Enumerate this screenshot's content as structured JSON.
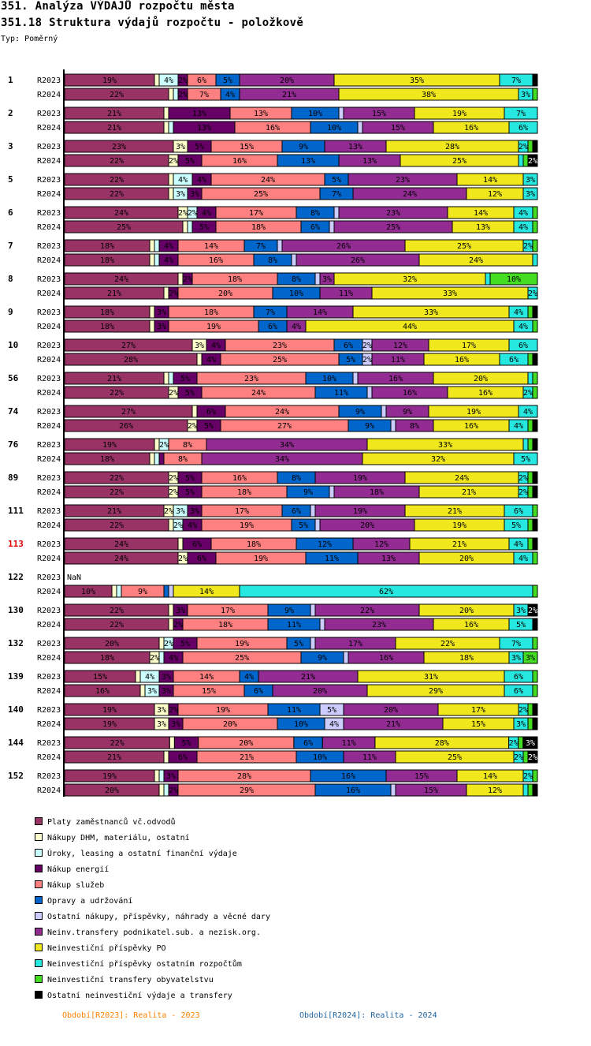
{
  "header": {
    "title": "351. Analýza VÝDAJŮ rozpočtu města",
    "subtitle": "351.18 Struktura výdajů rozpočtu - položkově",
    "type_label": "Typ: Poměrný"
  },
  "chart_data": {
    "type": "bar",
    "stacked": true,
    "orientation": "horizontal",
    "normalized_to": 100,
    "categories": [
      "Platy zaměstnanců vč.odvodů",
      "Nákupy DHM, materiálu, ostatní",
      "Úroky, leasing a ostatní finanční výdaje",
      "Nákup energií",
      "Nákup služeb",
      "Opravy a udržování",
      "Ostatní nákupy, příspěvky, náhrady a věcné dary",
      "Neinv.transfery podnikatel.sub. a nezisk.org.",
      "Neinvestiční příspěvky PO",
      "Neinvestiční příspěvky ostatním rozpočtům",
      "Neinvestiční transfery obyvatelstvu",
      "Ostatní neinvestiční výdaje a transfery"
    ],
    "colors": [
      "#993366",
      "#ffffcc",
      "#ccffff",
      "#660066",
      "#ff8080",
      "#0066cc",
      "#ccccff",
      "#922b92",
      "#f0e81c",
      "#26e8e0",
      "#44dd22",
      "#000000"
    ],
    "groups": [
      {
        "id": "1",
        "highlight": false,
        "rows": [
          {
            "period": "R2023",
            "values": [
              19,
              1,
              4,
              2,
              6,
              5,
              0,
              20,
              35,
              7,
              0,
              1
            ]
          },
          {
            "period": "R2024",
            "values": [
              22,
              1,
              1,
              2,
              7,
              4,
              0,
              21,
              38,
              3,
              1,
              0
            ]
          }
        ]
      },
      {
        "id": "2",
        "highlight": false,
        "rows": [
          {
            "period": "R2023",
            "values": [
              21,
              1,
              0,
              13,
              13,
              10,
              1,
              15,
              19,
              7,
              0,
              0
            ]
          },
          {
            "period": "R2024",
            "values": [
              21,
              1,
              1,
              13,
              16,
              10,
              1,
              15,
              16,
              6,
              0,
              0
            ]
          }
        ]
      },
      {
        "id": "3",
        "highlight": false,
        "rows": [
          {
            "period": "R2023",
            "values": [
              23,
              3,
              0,
              5,
              15,
              9,
              0,
              13,
              28,
              2,
              1,
              1
            ]
          },
          {
            "period": "R2024",
            "values": [
              22,
              2,
              0,
              5,
              16,
              13,
              0,
              13,
              25,
              1,
              1,
              2
            ]
          }
        ]
      },
      {
        "id": "5",
        "highlight": false,
        "rows": [
          {
            "period": "R2023",
            "values": [
              22,
              1,
              4,
              4,
              24,
              5,
              0,
              23,
              14,
              3,
              0,
              0
            ]
          },
          {
            "period": "R2024",
            "values": [
              22,
              1,
              3,
              3,
              25,
              7,
              0,
              24,
              12,
              3,
              0,
              0
            ]
          }
        ]
      },
      {
        "id": "6",
        "highlight": false,
        "rows": [
          {
            "period": "R2023",
            "values": [
              24,
              2,
              2,
              4,
              17,
              8,
              1,
              23,
              14,
              4,
              1,
              0
            ]
          },
          {
            "period": "R2024",
            "values": [
              25,
              1,
              1,
              5,
              18,
              6,
              1,
              25,
              13,
              4,
              1,
              0
            ]
          }
        ]
      },
      {
        "id": "7",
        "highlight": false,
        "rows": [
          {
            "period": "R2023",
            "values": [
              18,
              1,
              1,
              4,
              14,
              7,
              1,
              26,
              25,
              2,
              1,
              0
            ]
          },
          {
            "period": "R2024",
            "values": [
              18,
              1,
              1,
              4,
              16,
              8,
              1,
              26,
              24,
              1,
              0,
              0
            ]
          }
        ]
      },
      {
        "id": "8",
        "highlight": false,
        "rows": [
          {
            "period": "R2023",
            "values": [
              24,
              1,
              0,
              2,
              18,
              8,
              1,
              3,
              32,
              1,
              10,
              0
            ]
          },
          {
            "period": "R2024",
            "values": [
              21,
              1,
              0,
              2,
              20,
              10,
              0,
              11,
              33,
              2,
              0,
              0
            ]
          }
        ]
      },
      {
        "id": "9",
        "highlight": false,
        "rows": [
          {
            "period": "R2023",
            "values": [
              18,
              1,
              0,
              3,
              18,
              7,
              0,
              14,
              33,
              4,
              1,
              1
            ]
          },
          {
            "period": "R2024",
            "values": [
              18,
              1,
              0,
              3,
              19,
              6,
              0,
              4,
              44,
              4,
              1,
              0
            ]
          }
        ]
      },
      {
        "id": "10",
        "highlight": false,
        "rows": [
          {
            "period": "R2023",
            "values": [
              27,
              3,
              0,
              4,
              23,
              6,
              2,
              12,
              17,
              6,
              0,
              0
            ]
          },
          {
            "period": "R2024",
            "values": [
              28,
              1,
              0,
              4,
              25,
              5,
              2,
              11,
              16,
              6,
              1,
              1
            ]
          }
        ]
      },
      {
        "id": "56",
        "highlight": false,
        "rows": [
          {
            "period": "R2023",
            "values": [
              21,
              1,
              1,
              5,
              23,
              10,
              1,
              16,
              20,
              1,
              1,
              0
            ]
          },
          {
            "period": "R2024",
            "values": [
              22,
              2,
              0,
              5,
              24,
              11,
              1,
              16,
              16,
              2,
              1,
              0
            ]
          }
        ]
      },
      {
        "id": "74",
        "highlight": false,
        "rows": [
          {
            "period": "R2023",
            "values": [
              27,
              1,
              0,
              6,
              24,
              9,
              1,
              9,
              19,
              4,
              0,
              0
            ]
          },
          {
            "period": "R2024",
            "values": [
              26,
              2,
              0,
              5,
              27,
              9,
              1,
              8,
              16,
              4,
              1,
              1
            ]
          }
        ]
      },
      {
        "id": "76",
        "highlight": false,
        "rows": [
          {
            "period": "R2023",
            "values": [
              19,
              1,
              2,
              0,
              8,
              0,
              0,
              34,
              33,
              1,
              1,
              1
            ]
          },
          {
            "period": "R2024",
            "values": [
              18,
              1,
              1,
              1,
              8,
              0,
              0,
              34,
              32,
              5,
              0,
              0
            ]
          }
        ]
      },
      {
        "id": "89",
        "highlight": false,
        "rows": [
          {
            "period": "R2023",
            "values": [
              22,
              2,
              0,
              5,
              16,
              8,
              0,
              19,
              24,
              2,
              1,
              1
            ]
          },
          {
            "period": "R2024",
            "values": [
              22,
              2,
              0,
              5,
              18,
              9,
              1,
              18,
              21,
              2,
              1,
              1
            ]
          }
        ]
      },
      {
        "id": "111",
        "highlight": false,
        "rows": [
          {
            "period": "R2023",
            "values": [
              21,
              2,
              3,
              3,
              17,
              6,
              1,
              19,
              21,
              6,
              1,
              0
            ]
          },
          {
            "period": "R2024",
            "values": [
              22,
              1,
              2,
              4,
              19,
              5,
              1,
              20,
              19,
              5,
              1,
              1
            ]
          }
        ]
      },
      {
        "id": "113",
        "highlight": true,
        "rows": [
          {
            "period": "R2023",
            "values": [
              24,
              1,
              0,
              6,
              18,
              12,
              0,
              12,
              21,
              4,
              1,
              1
            ]
          },
          {
            "period": "R2024",
            "values": [
              24,
              2,
              0,
              6,
              19,
              11,
              0,
              13,
              20,
              4,
              1,
              0
            ]
          }
        ]
      },
      {
        "id": "122",
        "highlight": false,
        "rows": [
          {
            "period": "R2023",
            "values": null,
            "note": "NaN"
          },
          {
            "period": "R2024",
            "values": [
              10,
              1,
              1,
              0,
              9,
              1,
              1,
              0,
              14,
              62,
              1,
              0
            ]
          }
        ]
      },
      {
        "id": "130",
        "highlight": false,
        "rows": [
          {
            "period": "R2023",
            "values": [
              22,
              1,
              0,
              3,
              17,
              9,
              1,
              22,
              20,
              3,
              0,
              2
            ]
          },
          {
            "period": "R2024",
            "values": [
              22,
              1,
              0,
              2,
              18,
              11,
              1,
              23,
              16,
              5,
              0,
              1
            ]
          }
        ]
      },
      {
        "id": "132",
        "highlight": false,
        "rows": [
          {
            "period": "R2023",
            "values": [
              20,
              1,
              2,
              5,
              19,
              5,
              1,
              17,
              22,
              7,
              1,
              0
            ]
          },
          {
            "period": "R2024",
            "values": [
              18,
              2,
              1,
              4,
              25,
              9,
              1,
              16,
              18,
              3,
              3,
              0
            ]
          }
        ]
      },
      {
        "id": "139",
        "highlight": false,
        "rows": [
          {
            "period": "R2023",
            "values": [
              15,
              1,
              4,
              3,
              14,
              4,
              0,
              21,
              31,
              6,
              1,
              0
            ]
          },
          {
            "period": "R2024",
            "values": [
              16,
              1,
              3,
              3,
              15,
              6,
              0,
              20,
              29,
              6,
              1,
              0
            ]
          }
        ]
      },
      {
        "id": "140",
        "highlight": false,
        "rows": [
          {
            "period": "R2023",
            "values": [
              19,
              3,
              0,
              2,
              19,
              11,
              5,
              20,
              17,
              2,
              1,
              1
            ]
          },
          {
            "period": "R2024",
            "values": [
              19,
              3,
              0,
              3,
              20,
              10,
              4,
              21,
              15,
              3,
              1,
              1
            ]
          }
        ]
      },
      {
        "id": "144",
        "highlight": false,
        "rows": [
          {
            "period": "R2023",
            "values": [
              22,
              1,
              0,
              5,
              20,
              6,
              0,
              11,
              28,
              2,
              1,
              3
            ]
          },
          {
            "period": "R2024",
            "values": [
              21,
              1,
              0,
              6,
              21,
              10,
              0,
              11,
              25,
              2,
              1,
              2
            ]
          }
        ]
      },
      {
        "id": "152",
        "highlight": false,
        "rows": [
          {
            "period": "R2023",
            "values": [
              19,
              1,
              1,
              3,
              28,
              16,
              0,
              15,
              14,
              2,
              1,
              0
            ]
          },
          {
            "period": "R2024",
            "values": [
              20,
              1,
              1,
              2,
              29,
              16,
              1,
              15,
              12,
              1,
              1,
              1
            ]
          }
        ]
      }
    ]
  },
  "footer": {
    "period1": "Období[R2023]: Realita - 2023",
    "period1_color": "#ff8000",
    "period2": "Období[R2024]: Realita - 2024",
    "period2_color": "#1e64a0"
  }
}
